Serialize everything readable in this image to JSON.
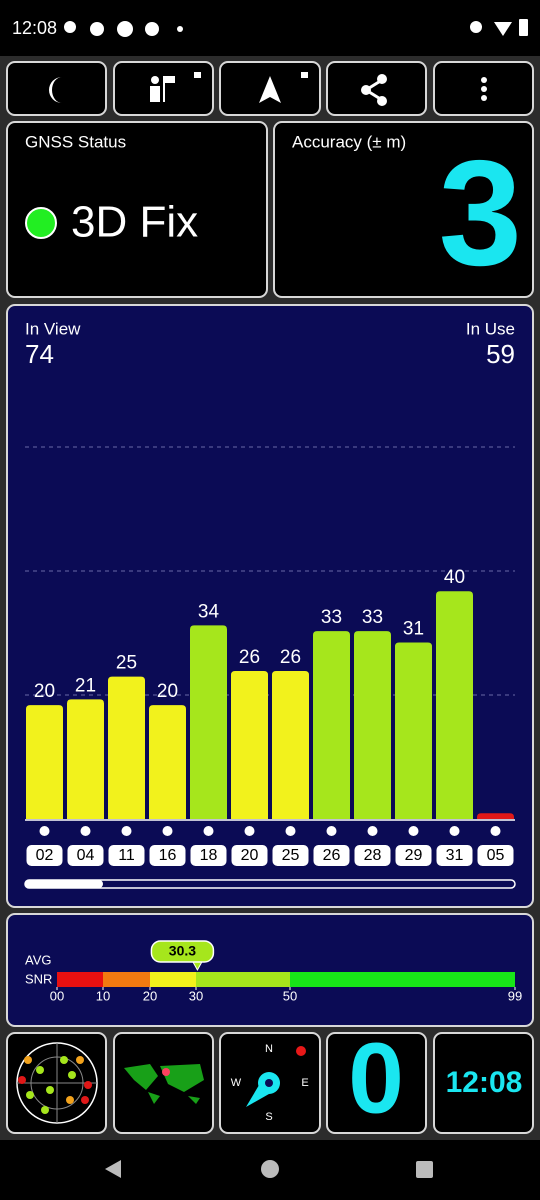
{
  "status_bar": {
    "time": "12:08"
  },
  "gnss_status": {
    "title": "GNSS Status",
    "fix": "3D Fix"
  },
  "accuracy": {
    "title": "Accuracy (± m)",
    "value": 3
  },
  "satellites": {
    "in_view_label": "In View",
    "in_view": 74,
    "in_use_label": "In Use",
    "in_use": 59
  },
  "chart_data": {
    "type": "bar",
    "categories": [
      "02",
      "04",
      "11",
      "16",
      "18",
      "20",
      "25",
      "26",
      "28",
      "29",
      "31",
      "05"
    ],
    "values": [
      20,
      21,
      25,
      20,
      34,
      26,
      26,
      33,
      33,
      31,
      40,
      1
    ],
    "value_labels": [
      "20",
      "21",
      "25",
      "20",
      "34",
      "26",
      "26",
      "33",
      "33",
      "31",
      "40",
      null
    ],
    "colors": [
      "#f2f21c",
      "#f2f21c",
      "#f2f21c",
      "#f2f21c",
      "#a6e61c",
      "#f2f21c",
      "#f2f21c",
      "#a6e61c",
      "#a6e61c",
      "#a6e61c",
      "#a6e61c",
      "#e01818"
    ],
    "ylim": [
      0,
      72
    ]
  },
  "snr": {
    "avg_label": "AVG",
    "snr_label": "SNR",
    "value": 30.3,
    "ticks": [
      {
        "value": 0,
        "label": "00"
      },
      10,
      20,
      30,
      50,
      99
    ],
    "segment_colors": [
      "#e81010",
      "#f27a10",
      "#f2f21c",
      "#a6e61c",
      "#18e618"
    ]
  },
  "widgets": {
    "compass": {
      "n": "N",
      "e": "E",
      "s": "S",
      "w": "W"
    },
    "count": 0,
    "clock": "12:08"
  }
}
